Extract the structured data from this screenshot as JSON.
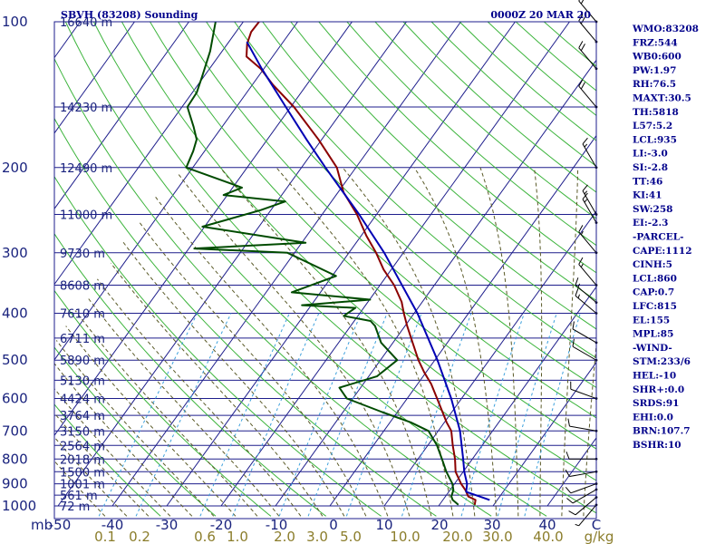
{
  "header": {
    "station": "SBVH (83208) Sounding",
    "time": "0000Z 20 MAR 20"
  },
  "colors": {
    "frame": "#1e1e8c",
    "isobar": "#1e1e8c",
    "isotherm": "#1e1e8c",
    "dry_adiabat": "#3cb43c",
    "moist_adiabat": "#5a5a28",
    "mixing_ratio": "#3ca0dc",
    "temperature": "#8b0000",
    "dewpoint": "#004b00",
    "parcel": "#0000b4",
    "wind": "#000000"
  },
  "axes": {
    "pressure_ticks": [
      "100",
      "200",
      "300",
      "400",
      "500",
      "600",
      "700",
      "800",
      "900",
      "1000"
    ],
    "height_labels": [
      "16640 m",
      "14230 m",
      "12490 m",
      "11000 m",
      "9730 m",
      "8608 m",
      "7610 m",
      "6711 m",
      "5890 m",
      "5130 m",
      "4424 m",
      "3764 m",
      "3150 m",
      "2564 m",
      "2018 m",
      "1500 m",
      "1001 m",
      "561 m",
      "72 m"
    ],
    "temp_unit": "mb",
    "temp_ticks": [
      "-50",
      "-40",
      "-30",
      "-20",
      "-10",
      "0",
      "10",
      "20",
      "30",
      "40",
      "C"
    ],
    "mixing_ratio_ticks": [
      "0.1",
      "0.2",
      "0.6",
      "1.0",
      "2.0",
      "3.0",
      "5.0",
      "10.0",
      "20.0",
      "30.0",
      "40.0",
      "g/kg"
    ]
  },
  "indices": {
    "station_params": [
      "WMO:83208",
      "FRZ:544",
      "WB0:600",
      "PW:1.97",
      "RH:76.5",
      "MAXT:30.5",
      "TH:5818",
      "L57:5.2",
      "LCL:935",
      "LI:-3.0",
      "SI:-2.8",
      "TT:46",
      "KI:41",
      "SW:258",
      "EI:-2.3"
    ],
    "parcel_header": "-PARCEL-",
    "parcel_params": [
      "CAPE:1112",
      "CINH:5",
      "LCL:860",
      "CAP:0.7",
      "LFC:815",
      "EL:155",
      "MPL:85"
    ],
    "wind_header": "-WIND-",
    "wind_params": [
      "STM:233/6",
      "HEL:-10",
      "SHR+:0.0",
      "SRDS:91",
      "EHI:0.0",
      "BRN:107.7",
      "BSHR:10"
    ]
  },
  "chart_data": {
    "type": "line",
    "title": "SBVH (83208) Sounding",
    "subtitle": "0000Z 20 MAR 20",
    "xlabel": "C",
    "ylabel": "mb",
    "y_log_scale": true,
    "ylim": [
      1000,
      100
    ],
    "xlim": [
      -50,
      50
    ],
    "grid": true,
    "series": [
      {
        "name": "Temperature",
        "points": [
          {
            "p": 995,
            "t": 26.5
          },
          {
            "p": 972,
            "t": 26.0
          },
          {
            "p": 956,
            "t": 24.2
          },
          {
            "p": 927,
            "t": 22.8
          },
          {
            "p": 900,
            "t": 21.2
          },
          {
            "p": 850,
            "t": 18.6
          },
          {
            "p": 800,
            "t": 16.8
          },
          {
            "p": 750,
            "t": 14.6
          },
          {
            "p": 700,
            "t": 12.4
          },
          {
            "p": 672,
            "t": 10.4
          },
          {
            "p": 600,
            "t": 5.5
          },
          {
            "p": 560,
            "t": 2.5
          },
          {
            "p": 530,
            "t": -0.3
          },
          {
            "p": 500,
            "t": -3.0
          },
          {
            "p": 460,
            "t": -6.4
          },
          {
            "p": 425,
            "t": -9.6
          },
          {
            "p": 400,
            "t": -11.9
          },
          {
            "p": 379,
            "t": -13.8
          },
          {
            "p": 350,
            "t": -17.4
          },
          {
            "p": 325,
            "t": -21.4
          },
          {
            "p": 300,
            "t": -25.0
          },
          {
            "p": 277,
            "t": -29.0
          },
          {
            "p": 250,
            "t": -33.6
          },
          {
            "p": 225,
            "t": -39.0
          },
          {
            "p": 200,
            "t": -43.5
          },
          {
            "p": 175,
            "t": -50.6
          },
          {
            "p": 150,
            "t": -59.4
          },
          {
            "p": 135,
            "t": -66.2
          },
          {
            "p": 125,
            "t": -70.6
          },
          {
            "p": 118,
            "t": -74.8
          },
          {
            "p": 111,
            "t": -76.4
          },
          {
            "p": 105,
            "t": -77.2
          },
          {
            "p": 100,
            "t": -77.1
          }
        ]
      },
      {
        "name": "Dewpoint",
        "points": [
          {
            "p": 995,
            "t": 23.5
          },
          {
            "p": 972,
            "t": 21.8
          },
          {
            "p": 956,
            "t": 21.1
          },
          {
            "p": 927,
            "t": 20.6
          },
          {
            "p": 900,
            "t": 19.6
          },
          {
            "p": 850,
            "t": 16.9
          },
          {
            "p": 800,
            "t": 14.4
          },
          {
            "p": 750,
            "t": 11.7
          },
          {
            "p": 700,
            "t": 8.2
          },
          {
            "p": 672,
            "t": 3.8
          },
          {
            "p": 640,
            "t": -2.8
          },
          {
            "p": 600,
            "t": -11.1
          },
          {
            "p": 570,
            "t": -13.9
          },
          {
            "p": 540,
            "t": -8.5
          },
          {
            "p": 500,
            "t": -6.9
          },
          {
            "p": 460,
            "t": -12.2
          },
          {
            "p": 425,
            "t": -15.5
          },
          {
            "p": 415,
            "t": -17.0
          },
          {
            "p": 405,
            "t": -22.6
          },
          {
            "p": 390,
            "t": -21.5
          },
          {
            "p": 385,
            "t": -31.7
          },
          {
            "p": 375,
            "t": -19.9
          },
          {
            "p": 362,
            "t": -35.3
          },
          {
            "p": 335,
            "t": -29.3
          },
          {
            "p": 300,
            "t": -41.3
          },
          {
            "p": 294,
            "t": -59.0
          },
          {
            "p": 286,
            "t": -39.3
          },
          {
            "p": 265,
            "t": -60.4
          },
          {
            "p": 245,
            "t": -51.9
          },
          {
            "p": 235,
            "t": -48.5
          },
          {
            "p": 228,
            "t": -60.7
          },
          {
            "p": 220,
            "t": -58.3
          },
          {
            "p": 200,
            "t": -71.2
          },
          {
            "p": 185,
            "t": -72.1
          },
          {
            "p": 175,
            "t": -73.0
          },
          {
            "p": 165,
            "t": -75.2
          },
          {
            "p": 150,
            "t": -79.0
          },
          {
            "p": 140,
            "t": -79.2
          },
          {
            "p": 130,
            "t": -80.3
          },
          {
            "p": 115,
            "t": -82.2
          },
          {
            "p": 100,
            "t": -85.1
          }
        ]
      },
      {
        "name": "Parcel",
        "points": [
          {
            "p": 972,
            "t": 28.6
          },
          {
            "p": 935,
            "t": 23.2
          },
          {
            "p": 900,
            "t": 22.3
          },
          {
            "p": 850,
            "t": 20.2
          },
          {
            "p": 800,
            "t": 18.3
          },
          {
            "p": 700,
            "t": 14.0
          },
          {
            "p": 600,
            "t": 8.1
          },
          {
            "p": 500,
            "t": 0.5
          },
          {
            "p": 400,
            "t": -9.4
          },
          {
            "p": 300,
            "t": -23.5
          },
          {
            "p": 250,
            "t": -33.2
          },
          {
            "p": 200,
            "t": -45.6
          },
          {
            "p": 175,
            "t": -52.8
          },
          {
            "p": 150,
            "t": -60.9
          },
          {
            "p": 125,
            "t": -70.4
          },
          {
            "p": 110,
            "t": -76.7
          }
        ]
      }
    ],
    "wind_barbs": [
      {
        "p": 995,
        "dir": 220,
        "spd": 5
      },
      {
        "p": 960,
        "dir": 230,
        "spd": 10
      },
      {
        "p": 925,
        "dir": 240,
        "spd": 10
      },
      {
        "p": 900,
        "dir": 250,
        "spd": 10
      },
      {
        "p": 850,
        "dir": 260,
        "spd": 10
      },
      {
        "p": 800,
        "dir": 270,
        "spd": 10
      },
      {
        "p": 700,
        "dir": 280,
        "spd": 10
      },
      {
        "p": 600,
        "dir": 290,
        "spd": 10
      },
      {
        "p": 500,
        "dir": 300,
        "spd": 10
      },
      {
        "p": 460,
        "dir": 300,
        "spd": 10
      },
      {
        "p": 400,
        "dir": 310,
        "spd": 15
      },
      {
        "p": 380,
        "dir": 310,
        "spd": 15
      },
      {
        "p": 350,
        "dir": 320,
        "spd": 15
      },
      {
        "p": 300,
        "dir": 320,
        "spd": 15
      },
      {
        "p": 260,
        "dir": 330,
        "spd": 15
      },
      {
        "p": 250,
        "dir": 330,
        "spd": 15
      },
      {
        "p": 200,
        "dir": 330,
        "spd": 15
      },
      {
        "p": 150,
        "dir": 320,
        "spd": 20
      },
      {
        "p": 125,
        "dir": 320,
        "spd": 20
      },
      {
        "p": 110,
        "dir": 320,
        "spd": 20
      },
      {
        "p": 100,
        "dir": 320,
        "spd": 20
      }
    ]
  }
}
